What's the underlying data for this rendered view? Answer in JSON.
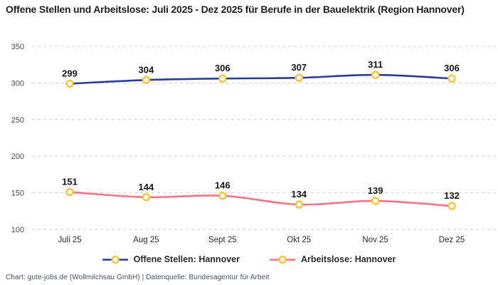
{
  "title": "Offene Stellen und Arbeitslose: Juli 2025 - Dez 2025 für Berufe in der Bauelektrik (Region Hannover)",
  "footer": "Chart: gute-jobs.de (Wollmilchsau GmbH) | Datenquelle: Bundesagentur für Arbeit",
  "colors": {
    "open_positions_line": "#283c9e",
    "unemployed_line": "#fb7186",
    "marker_ring": "#ffc233",
    "marker_fill": "#ffffff",
    "gridline": "#cfcfcf",
    "title_text": "#1f1f1f",
    "axis_tick_text": "#4a4a4a",
    "x_tick_text": "#2b2b2b",
    "data_label_text": "#161616",
    "footer_text": "#44506b"
  },
  "chart_data": {
    "type": "line",
    "title": "Offene Stellen und Arbeitslose: Juli 2025 - Dez 2025 für Berufe in der Bauelektrik (Region Hannover)",
    "categories": [
      "Juli 25",
      "Aug 25",
      "Sept 25",
      "Okt 25",
      "Nov 25",
      "Dez 25"
    ],
    "series": [
      {
        "name": "Offene Stellen: Hannover",
        "values": [
          299,
          304,
          306,
          307,
          311,
          306
        ],
        "color": "#283c9e"
      },
      {
        "name": "Arbeitslose: Hannover",
        "values": [
          151,
          144,
          146,
          134,
          139,
          132
        ],
        "color": "#fb7186"
      }
    ],
    "xlabel": "",
    "ylabel": "",
    "ylim": [
      100,
      350
    ],
    "yticks": [
      100,
      150,
      200,
      250,
      300,
      350
    ],
    "grid": "horizontal-dashed",
    "legend_position": "bottom",
    "data_labels": true,
    "marker": {
      "shape": "circle",
      "fill": "#ffffff",
      "stroke": "#ffc233"
    }
  }
}
